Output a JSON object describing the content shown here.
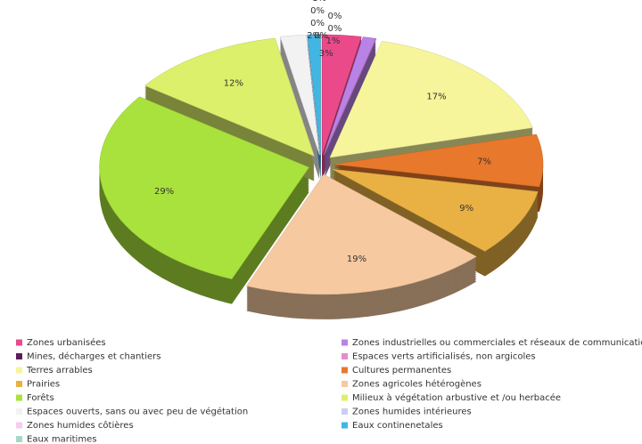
{
  "chart_data": {
    "type": "pie",
    "categories": [
      "Zones urbanisées",
      "Zones industrielles ou commerciales et réseaux de communication",
      "Mines, décharges et chantiers",
      "Espaces verts artificialisés, non argicoles",
      "Terres arrables",
      "Cultures permanentes",
      "Prairies",
      "Zones agricoles hétérogènes",
      "Forêts",
      "Milieux à végétation arbustive et /ou herbacée",
      "Espaces ouverts, sans ou avec peu de végétation",
      "Zones humides intérieures",
      "Zones humides côtières",
      "Eaux continenetales",
      "Eaux maritimes"
    ],
    "values": [
      3,
      1,
      0,
      0,
      17,
      7,
      9,
      19,
      29,
      12,
      2,
      0,
      0,
      1,
      0
    ],
    "value_labels": [
      "3%",
      "1%",
      "0%",
      "0%",
      "17%",
      "7%",
      "9%",
      "19%",
      "29%",
      "12%",
      "2%",
      "0%",
      "0%",
      "1%",
      "0%"
    ],
    "colors": [
      "#ea4a8a",
      "#b982e6",
      "#5e1c5c",
      "#e58ccb",
      "#f6f59c",
      "#e8782c",
      "#e9b144",
      "#f6c9a0",
      "#a9e23c",
      "#dcf06c",
      "#f2f2f2",
      "#cccdf2",
      "#f4cdf0",
      "#41b6e2",
      "#a3d9c4"
    ],
    "legend": "bottom"
  }
}
